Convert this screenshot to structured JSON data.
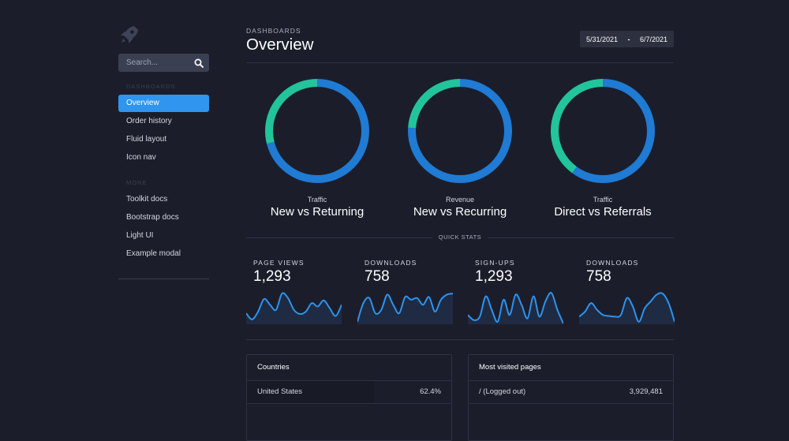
{
  "sidebar": {
    "logo_icon": "rocket-icon",
    "search": {
      "placeholder": "Search...",
      "icon": "search-icon"
    },
    "sections": [
      {
        "header": "DASHBOARDS",
        "items": [
          "Overview",
          "Order history",
          "Fluid layout",
          "Icon nav"
        ],
        "active": "Overview"
      },
      {
        "header": "MORE",
        "items": [
          "Toolkit docs",
          "Bootstrap docs",
          "Light UI",
          "Example modal"
        ]
      }
    ]
  },
  "header": {
    "eyebrow": "DASHBOARDS",
    "title": "Overview",
    "date_start": "5/31/2021",
    "date_sep": "-",
    "date_end": "6/7/2021"
  },
  "donuts": [
    {
      "small": "Traffic",
      "big": "New vs Returning",
      "blue_fraction": 0.71,
      "green_fraction": 0.29
    },
    {
      "small": "Revenue",
      "big": "New vs Recurring",
      "blue_fraction": 0.76,
      "green_fraction": 0.24
    },
    {
      "small": "Traffic",
      "big": "Direct vs Referrals",
      "blue_fraction": 0.6,
      "green_fraction": 0.4
    }
  ],
  "quick_stats_label": "QUICK STATS",
  "stats": [
    {
      "label": "PAGE VIEWS",
      "value": "1,293",
      "spark": [
        0.3,
        0.12,
        0.35,
        0.72,
        0.55,
        0.4,
        0.88,
        0.75,
        0.4,
        0.28,
        0.35,
        0.6,
        0.5,
        0.68,
        0.45,
        0.22,
        0.55
      ]
    },
    {
      "label": "DOWNLOADS",
      "value": "758",
      "spark": [
        0.05,
        0.6,
        0.75,
        0.3,
        0.4,
        0.85,
        0.55,
        0.3,
        0.78,
        0.7,
        0.75,
        0.55,
        0.78,
        0.35,
        0.7,
        0.85,
        0.88
      ]
    },
    {
      "label": "SIGN-UPS",
      "value": "1,293",
      "spark": [
        0.25,
        0.1,
        0.2,
        0.8,
        0.4,
        0.05,
        0.7,
        0.25,
        0.85,
        0.55,
        0.15,
        0.8,
        0.2,
        0.65,
        0.9,
        0.4,
        0.0
      ]
    },
    {
      "label": "DOWNLOADS",
      "value": "758",
      "spark": [
        0.2,
        0.35,
        0.6,
        0.4,
        0.25,
        0.22,
        0.2,
        0.25,
        0.75,
        0.5,
        0.05,
        0.45,
        0.65,
        0.85,
        0.88,
        0.6,
        0.05
      ]
    }
  ],
  "panels": [
    {
      "title": "Countries",
      "rows": [
        {
          "label": "United States",
          "value": "62.4%",
          "fill": 0.62
        }
      ]
    },
    {
      "title": "Most visited pages",
      "rows": [
        {
          "label": "/ (Logged out)",
          "value": "3,929,481",
          "fill": 0.0
        }
      ]
    }
  ],
  "colors": {
    "background": "#1b1e2a",
    "accent": "#2f95ee",
    "donut_blue": "#1f7bd4",
    "donut_green": "#22c49b",
    "spark": "#2d93f0"
  }
}
